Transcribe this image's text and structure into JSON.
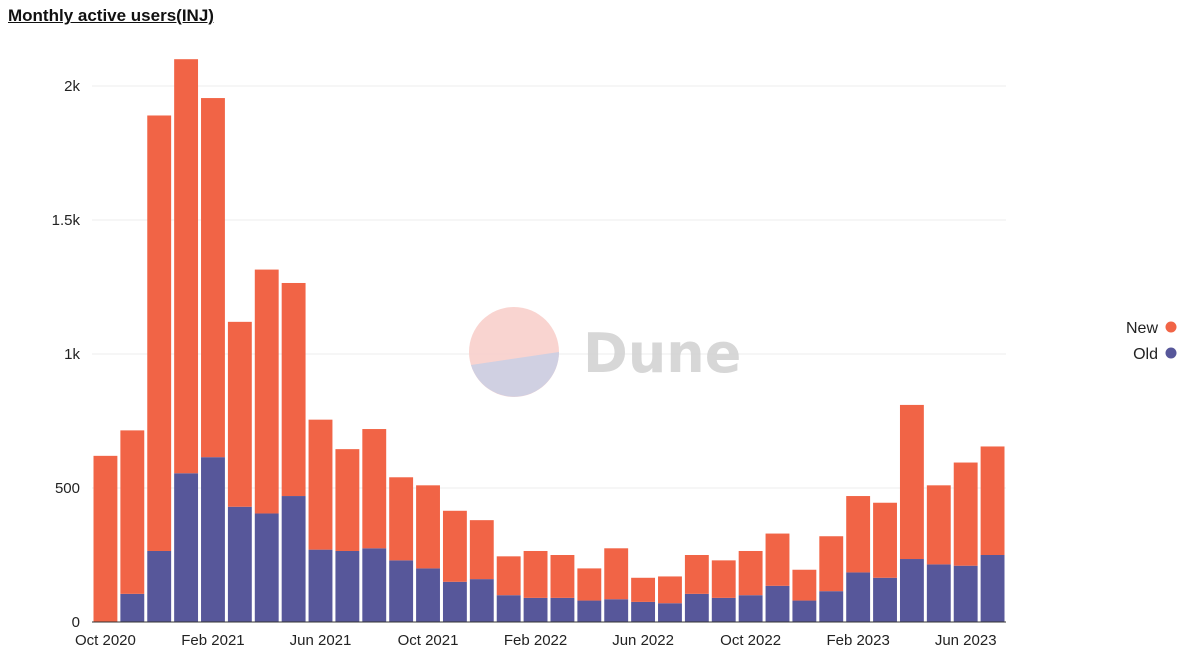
{
  "title": "Monthly active users(INJ)",
  "watermark": "Dune",
  "chart_data": {
    "type": "bar",
    "stacked": true,
    "title": "Monthly active users(INJ)",
    "xlabel": "",
    "ylabel": "",
    "ylim": [
      0,
      2100
    ],
    "yticks": [
      0,
      500,
      1000,
      1500,
      2000
    ],
    "ytick_labels": [
      "0",
      "500",
      "1k",
      "1.5k",
      "2k"
    ],
    "xtick_labels": [
      {
        "label": "Oct 2020",
        "index": 0
      },
      {
        "label": "Feb 2021",
        "index": 4
      },
      {
        "label": "Jun 2021",
        "index": 8
      },
      {
        "label": "Oct 2021",
        "index": 12
      },
      {
        "label": "Feb 2022",
        "index": 16
      },
      {
        "label": "Jun 2022",
        "index": 20
      },
      {
        "label": "Oct 2022",
        "index": 24
      },
      {
        "label": "Feb 2023",
        "index": 28
      },
      {
        "label": "Jun 2023",
        "index": 32
      }
    ],
    "grid": true,
    "legend_position": "right",
    "categories": [
      "2020-10",
      "2020-11",
      "2020-12",
      "2021-01",
      "2021-02",
      "2021-03",
      "2021-04",
      "2021-05",
      "2021-06",
      "2021-07",
      "2021-08",
      "2021-09",
      "2021-10",
      "2021-11",
      "2021-12",
      "2022-01",
      "2022-02",
      "2022-03",
      "2022-04",
      "2022-05",
      "2022-06",
      "2022-07",
      "2022-08",
      "2022-09",
      "2022-10",
      "2022-11",
      "2022-12",
      "2023-01",
      "2023-02",
      "2023-03",
      "2023-04",
      "2023-05",
      "2023-06",
      "2023-07"
    ],
    "series": [
      {
        "name": "Old",
        "color": "#57579a",
        "values": [
          0,
          105,
          265,
          555,
          615,
          430,
          405,
          470,
          270,
          265,
          275,
          230,
          200,
          150,
          160,
          100,
          90,
          90,
          80,
          85,
          75,
          70,
          105,
          90,
          100,
          135,
          80,
          115,
          185,
          165,
          235,
          215,
          210,
          250
        ]
      },
      {
        "name": "New",
        "color": "#f16446",
        "values": [
          620,
          610,
          1625,
          1545,
          1340,
          690,
          910,
          795,
          485,
          380,
          445,
          310,
          310,
          265,
          220,
          145,
          175,
          160,
          120,
          190,
          90,
          100,
          145,
          140,
          165,
          195,
          115,
          205,
          285,
          280,
          575,
          295,
          385,
          405
        ]
      }
    ],
    "legend": [
      {
        "name": "New",
        "color": "#f16446"
      },
      {
        "name": "Old",
        "color": "#57579a"
      }
    ]
  }
}
